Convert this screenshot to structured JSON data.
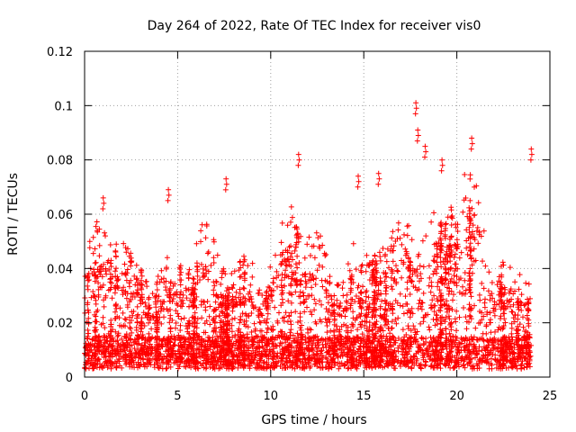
{
  "chart_data": {
    "type": "scatter",
    "title": "Day 264 of 2022, Rate Of TEC Index for receiver vis0",
    "xlabel": "GPS time / hours",
    "ylabel": "ROTI / TECUs",
    "xlim": [
      0,
      25
    ],
    "ylim": [
      0,
      0.12
    ],
    "xticks": [
      0,
      5,
      10,
      15,
      20,
      25
    ],
    "xtick_labels": [
      "0",
      "5",
      "10",
      "15",
      "20",
      "25"
    ],
    "yticks": [
      0,
      0.02,
      0.04,
      0.06,
      0.08,
      0.1,
      0.12
    ],
    "ytick_labels": [
      "0",
      "0.02",
      "0.04",
      "0.06",
      "0.08",
      "0.1",
      "0.12"
    ],
    "grid": true,
    "marker": "+",
    "color": "#ff0000",
    "series": [
      {
        "name": "ROTI",
        "x_range": [
          0,
          24
        ],
        "value_range": [
          0.001,
          0.101
        ],
        "typical_band": [
          0.003,
          0.05
        ],
        "notable_peaks": [
          {
            "x": 17.8,
            "y": 0.101
          },
          {
            "x": 17.9,
            "y": 0.091
          },
          {
            "x": 20.8,
            "y": 0.088
          },
          {
            "x": 11.5,
            "y": 0.082
          },
          {
            "x": 24.0,
            "y": 0.084
          },
          {
            "x": 19.2,
            "y": 0.08
          },
          {
            "x": 18.3,
            "y": 0.085
          },
          {
            "x": 4.5,
            "y": 0.069
          },
          {
            "x": 7.6,
            "y": 0.073
          },
          {
            "x": 1.0,
            "y": 0.066
          },
          {
            "x": 14.7,
            "y": 0.074
          },
          {
            "x": 15.8,
            "y": 0.075
          }
        ]
      }
    ]
  }
}
